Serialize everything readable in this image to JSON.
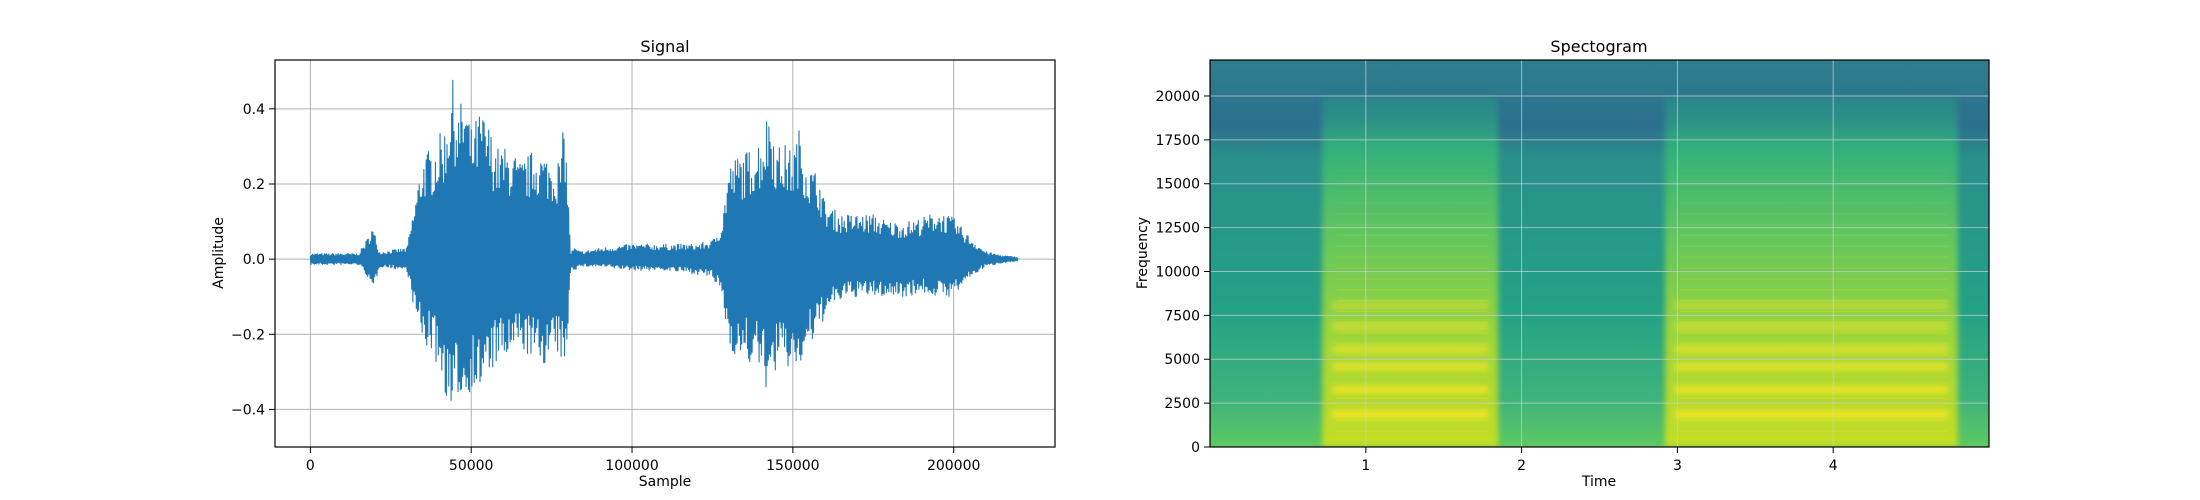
{
  "chart_data": [
    {
      "type": "line",
      "title": "Signal",
      "xlabel": "Sample",
      "ylabel": "Amplitude",
      "xlim": [
        -11000,
        231500
      ],
      "ylim": [
        -0.5,
        0.53
      ],
      "xticks": [
        0,
        50000,
        100000,
        150000,
        200000
      ],
      "xtick_labels": [
        "0",
        "50000",
        "100000",
        "150000",
        "200000"
      ],
      "yticks": [
        -0.4,
        -0.2,
        0.0,
        0.2,
        0.4
      ],
      "ytick_labels": [
        "−0.4",
        "−0.2",
        "0.0",
        "0.2",
        "0.4"
      ],
      "grid": true,
      "color": "#1f77b4",
      "envelope": {
        "x": [
          0,
          15000,
          18000,
          19000,
          20000,
          21500,
          30000,
          33000,
          35000,
          38000,
          42000,
          44000,
          46000,
          48000,
          50000,
          53000,
          55000,
          58000,
          60000,
          63000,
          65000,
          68000,
          70000,
          73000,
          76000,
          78000,
          79000,
          80000,
          81000,
          82000,
          84000,
          90000,
          100000,
          110000,
          120000,
          125000,
          128000,
          130000,
          133000,
          136000,
          140000,
          143000,
          145000,
          147000,
          150000,
          152000,
          155000,
          158000,
          160000,
          165000,
          170000,
          175000,
          180000,
          185000,
          190000,
          195000,
          200000,
          205000,
          210000,
          215000,
          220000
        ],
        "upper": [
          0.015,
          0.015,
          0.06,
          0.09,
          0.07,
          0.02,
          0.03,
          0.18,
          0.28,
          0.3,
          0.36,
          0.49,
          0.4,
          0.45,
          0.35,
          0.4,
          0.37,
          0.3,
          0.3,
          0.29,
          0.26,
          0.28,
          0.3,
          0.28,
          0.26,
          0.28,
          0.4,
          0.2,
          0.02,
          0.03,
          0.02,
          0.03,
          0.04,
          0.04,
          0.04,
          0.05,
          0.1,
          0.25,
          0.28,
          0.29,
          0.33,
          0.42,
          0.3,
          0.31,
          0.29,
          0.35,
          0.25,
          0.23,
          0.15,
          0.12,
          0.12,
          0.12,
          0.1,
          0.1,
          0.11,
          0.13,
          0.11,
          0.06,
          0.02,
          0.01,
          0.005
        ],
        "lower": [
          -0.015,
          -0.015,
          -0.05,
          -0.1,
          -0.07,
          -0.02,
          -0.03,
          -0.17,
          -0.23,
          -0.25,
          -0.36,
          -0.46,
          -0.36,
          -0.4,
          -0.34,
          -0.36,
          -0.32,
          -0.28,
          -0.28,
          -0.26,
          -0.24,
          -0.26,
          -0.28,
          -0.28,
          -0.26,
          -0.27,
          -0.35,
          -0.2,
          -0.02,
          -0.03,
          -0.02,
          -0.02,
          -0.03,
          -0.03,
          -0.04,
          -0.05,
          -0.1,
          -0.23,
          -0.27,
          -0.28,
          -0.3,
          -0.38,
          -0.28,
          -0.3,
          -0.29,
          -0.3,
          -0.24,
          -0.2,
          -0.15,
          -0.11,
          -0.1,
          -0.1,
          -0.1,
          -0.1,
          -0.09,
          -0.1,
          -0.1,
          -0.05,
          -0.02,
          -0.01,
          -0.005
        ]
      }
    },
    {
      "type": "heatmap",
      "title": "Spectogram",
      "xlabel": "Time",
      "ylabel": "Frequency",
      "xlim": [
        0,
        5.0
      ],
      "ylim": [
        0,
        22050
      ],
      "xticks": [
        1,
        2,
        3,
        4
      ],
      "xtick_labels": [
        "1",
        "2",
        "3",
        "4"
      ],
      "yticks": [
        0,
        2500,
        5000,
        7500,
        10000,
        12500,
        15000,
        17500,
        20000
      ],
      "ytick_labels": [
        "0",
        "2500",
        "5000",
        "7500",
        "10000",
        "12500",
        "15000",
        "17500",
        "20000"
      ],
      "grid": true,
      "colormap": [
        "#2f6b8e",
        "#21908d",
        "#35b779",
        "#90d743",
        "#d8e219",
        "#fde725"
      ],
      "voiced_regions": [
        [
          0.72,
          1.85
        ],
        [
          2.92,
          4.8
        ]
      ],
      "formant_bands": [
        1800,
        3200,
        4500,
        5500,
        6800,
        8000
      ]
    }
  ]
}
